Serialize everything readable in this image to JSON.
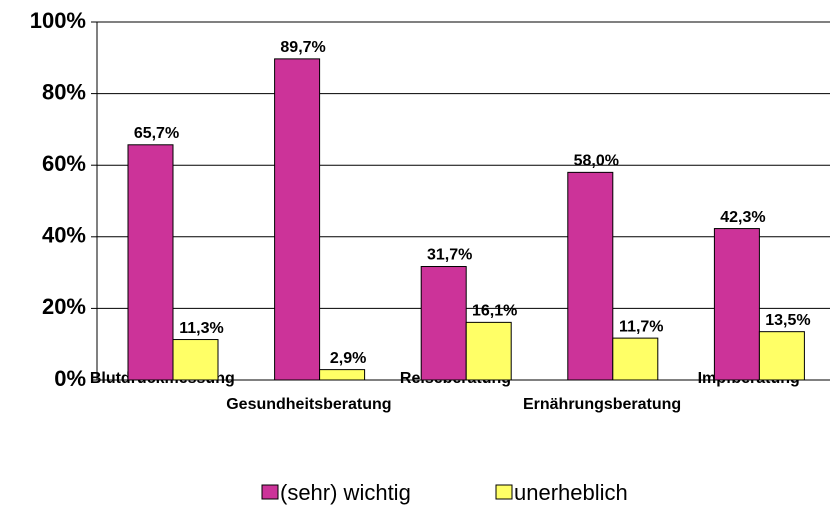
{
  "chart_data": {
    "type": "bar",
    "categories": [
      "Blutdruckmessung",
      "Gesundheitsberatung",
      "Reiseberatung",
      "Ernährungsberatung",
      "Impfberatung"
    ],
    "series": [
      {
        "name": "(sehr) wichtig",
        "color": "#cc3399",
        "values": [
          65.7,
          89.7,
          31.7,
          58.0,
          42.3
        ],
        "value_labels": [
          "65,7%",
          "89,7%",
          "31,7%",
          "58,0%",
          "42,3%"
        ]
      },
      {
        "name": "unerheblich",
        "color": "#ffff66",
        "values": [
          11.3,
          2.9,
          16.1,
          11.7,
          13.5
        ],
        "value_labels": [
          "11,3%",
          "2,9%",
          "16,1%",
          "11,7%",
          "13,5%"
        ]
      }
    ],
    "ylim": [
      0,
      100
    ],
    "yticks": [
      {
        "value": 0,
        "label": "0%"
      },
      {
        "value": 20,
        "label": "20%"
      },
      {
        "value": 40,
        "label": "40%"
      },
      {
        "value": 60,
        "label": "60%"
      },
      {
        "value": 80,
        "label": "80%"
      },
      {
        "value": 100,
        "label": "100%"
      }
    ],
    "grid": true,
    "legend": "bottom"
  }
}
